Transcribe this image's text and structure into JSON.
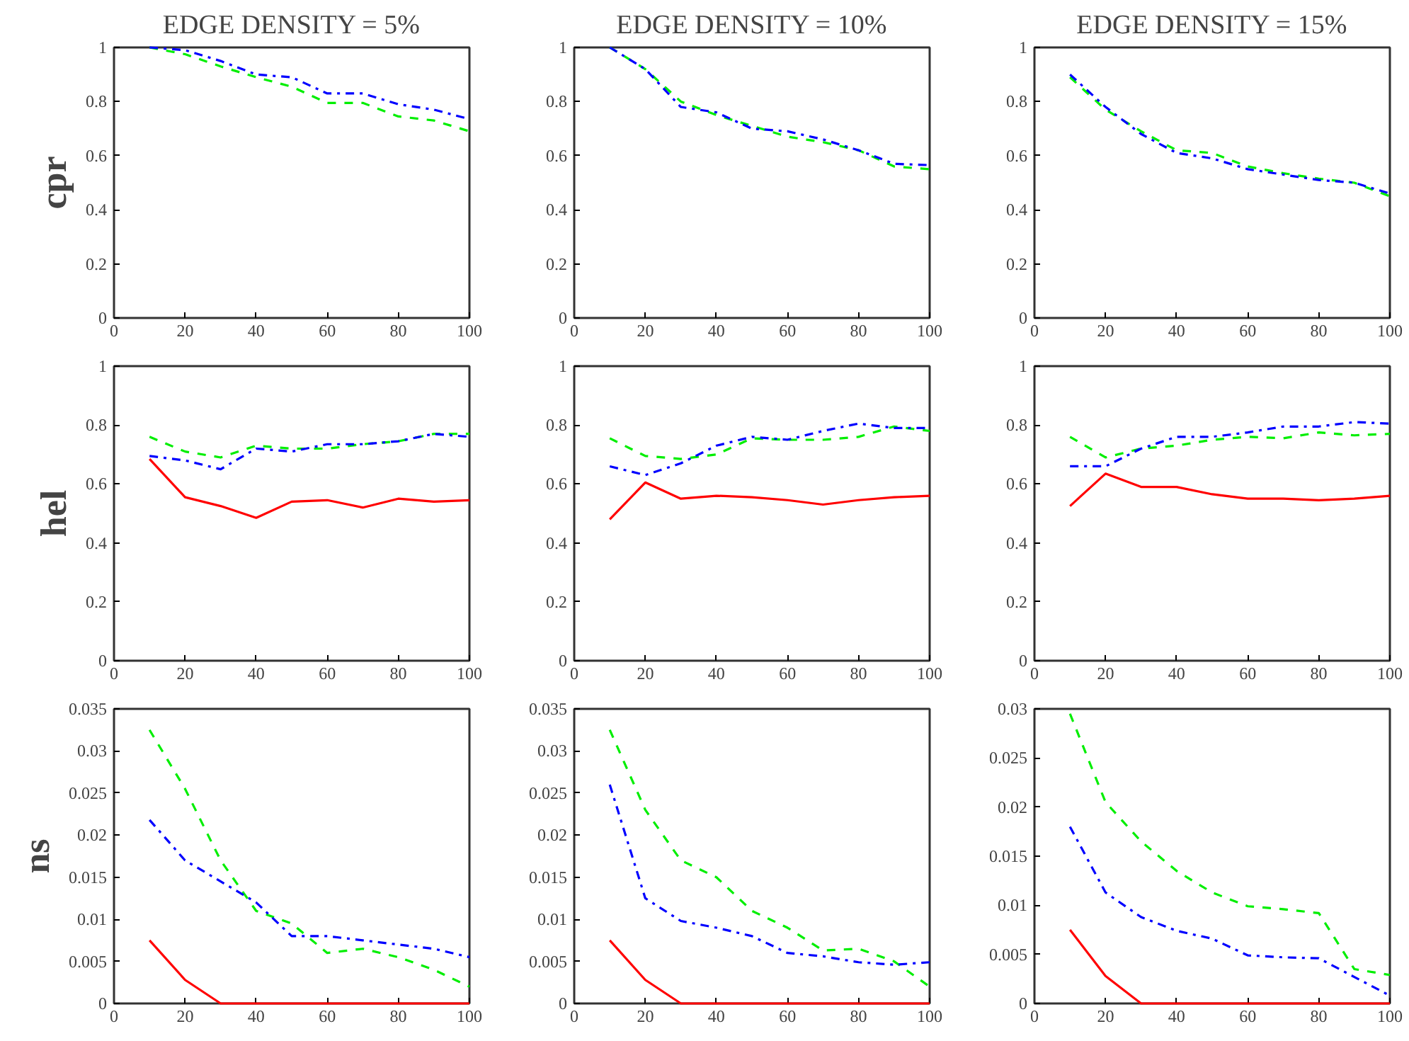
{
  "chart_data": [
    {
      "type": "line",
      "title": "EDGE DENSITY = 5%",
      "ylabel": "cpr",
      "x": [
        10,
        20,
        30,
        40,
        50,
        60,
        70,
        80,
        90,
        100
      ],
      "xlim": [
        0,
        100
      ],
      "xticks": [
        0,
        20,
        40,
        60,
        80,
        100
      ],
      "ylim": [
        0,
        1
      ],
      "yticks": [
        0,
        0.2,
        0.4,
        0.6,
        0.8,
        1
      ],
      "grid": false,
      "series": [
        {
          "color": "#00ee00",
          "line_style": "dashed",
          "values": [
            1.0,
            0.975,
            0.93,
            0.89,
            0.855,
            0.795,
            0.795,
            0.745,
            0.73,
            0.69
          ]
        },
        {
          "color": "#0000ff",
          "line_style": "dashdot",
          "values": [
            1.0,
            0.99,
            0.95,
            0.9,
            0.89,
            0.83,
            0.83,
            0.79,
            0.77,
            0.735
          ]
        }
      ]
    },
    {
      "type": "line",
      "title": "EDGE DENSITY = 10%",
      "x": [
        10,
        20,
        30,
        40,
        50,
        60,
        70,
        80,
        90,
        100
      ],
      "xlim": [
        0,
        100
      ],
      "xticks": [
        0,
        20,
        40,
        60,
        80,
        100
      ],
      "ylim": [
        0,
        1
      ],
      "yticks": [
        0,
        0.2,
        0.4,
        0.6,
        0.8,
        1
      ],
      "grid": false,
      "series": [
        {
          "color": "#00ee00",
          "line_style": "dashed",
          "values": [
            1.0,
            0.92,
            0.8,
            0.75,
            0.71,
            0.67,
            0.65,
            0.62,
            0.56,
            0.55
          ]
        },
        {
          "color": "#0000ff",
          "line_style": "dashdot",
          "values": [
            1.0,
            0.92,
            0.78,
            0.76,
            0.7,
            0.69,
            0.66,
            0.62,
            0.57,
            0.565
          ]
        }
      ]
    },
    {
      "type": "line",
      "title": "EDGE DENSITY = 15%",
      "x": [
        10,
        20,
        30,
        40,
        50,
        60,
        70,
        80,
        90,
        100
      ],
      "xlim": [
        0,
        100
      ],
      "xticks": [
        0,
        20,
        40,
        60,
        80,
        100
      ],
      "ylim": [
        0,
        1
      ],
      "yticks": [
        0,
        0.2,
        0.4,
        0.6,
        0.8,
        1
      ],
      "grid": false,
      "series": [
        {
          "color": "#00ee00",
          "line_style": "dashed",
          "values": [
            0.89,
            0.77,
            0.69,
            0.62,
            0.61,
            0.56,
            0.535,
            0.515,
            0.5,
            0.45
          ]
        },
        {
          "color": "#0000ff",
          "line_style": "dashdot",
          "values": [
            0.9,
            0.78,
            0.68,
            0.61,
            0.59,
            0.55,
            0.53,
            0.51,
            0.5,
            0.46
          ]
        }
      ]
    },
    {
      "type": "line",
      "ylabel": "hel",
      "x": [
        10,
        20,
        30,
        40,
        50,
        60,
        70,
        80,
        90,
        100
      ],
      "xlim": [
        0,
        100
      ],
      "xticks": [
        0,
        20,
        40,
        60,
        80,
        100
      ],
      "ylim": [
        0,
        1
      ],
      "yticks": [
        0,
        0.2,
        0.4,
        0.6,
        0.8,
        1
      ],
      "grid": false,
      "series": [
        {
          "color": "#ff0000",
          "line_style": "solid",
          "values": [
            0.685,
            0.555,
            0.525,
            0.485,
            0.54,
            0.545,
            0.52,
            0.55,
            0.54,
            0.545
          ]
        },
        {
          "color": "#00ee00",
          "line_style": "dashed",
          "values": [
            0.76,
            0.71,
            0.69,
            0.73,
            0.72,
            0.72,
            0.735,
            0.745,
            0.77,
            0.77
          ]
        },
        {
          "color": "#0000ff",
          "line_style": "dashdot",
          "values": [
            0.695,
            0.68,
            0.65,
            0.72,
            0.71,
            0.735,
            0.735,
            0.745,
            0.77,
            0.76
          ]
        }
      ]
    },
    {
      "type": "line",
      "x": [
        10,
        20,
        30,
        40,
        50,
        60,
        70,
        80,
        90,
        100
      ],
      "xlim": [
        0,
        100
      ],
      "xticks": [
        0,
        20,
        40,
        60,
        80,
        100
      ],
      "ylim": [
        0,
        1
      ],
      "yticks": [
        0,
        0.2,
        0.4,
        0.6,
        0.8,
        1
      ],
      "grid": false,
      "series": [
        {
          "color": "#ff0000",
          "line_style": "solid",
          "values": [
            0.48,
            0.605,
            0.55,
            0.56,
            0.555,
            0.545,
            0.53,
            0.545,
            0.555,
            0.56
          ]
        },
        {
          "color": "#00ee00",
          "line_style": "dashed",
          "values": [
            0.755,
            0.695,
            0.685,
            0.7,
            0.755,
            0.75,
            0.75,
            0.76,
            0.795,
            0.78
          ]
        },
        {
          "color": "#0000ff",
          "line_style": "dashdot",
          "values": [
            0.66,
            0.63,
            0.67,
            0.73,
            0.76,
            0.75,
            0.78,
            0.805,
            0.79,
            0.79
          ]
        }
      ]
    },
    {
      "type": "line",
      "x": [
        10,
        20,
        30,
        40,
        50,
        60,
        70,
        80,
        90,
        100
      ],
      "xlim": [
        0,
        100
      ],
      "xticks": [
        0,
        20,
        40,
        60,
        80,
        100
      ],
      "ylim": [
        0,
        1
      ],
      "yticks": [
        0,
        0.2,
        0.4,
        0.6,
        0.8,
        1
      ],
      "grid": false,
      "series": [
        {
          "color": "#ff0000",
          "line_style": "solid",
          "values": [
            0.525,
            0.635,
            0.59,
            0.59,
            0.565,
            0.55,
            0.55,
            0.545,
            0.55,
            0.56
          ]
        },
        {
          "color": "#00ee00",
          "line_style": "dashed",
          "values": [
            0.76,
            0.69,
            0.72,
            0.73,
            0.75,
            0.76,
            0.755,
            0.775,
            0.765,
            0.77
          ]
        },
        {
          "color": "#0000ff",
          "line_style": "dashdot",
          "values": [
            0.66,
            0.66,
            0.72,
            0.76,
            0.76,
            0.775,
            0.795,
            0.795,
            0.81,
            0.805
          ]
        }
      ]
    },
    {
      "type": "line",
      "ylabel": "ns",
      "x": [
        10,
        20,
        30,
        40,
        50,
        60,
        70,
        80,
        90,
        100
      ],
      "xlim": [
        0,
        100
      ],
      "xticks": [
        0,
        20,
        40,
        60,
        80,
        100
      ],
      "ylim": [
        0,
        0.035
      ],
      "yticks": [
        0,
        0.005,
        0.01,
        0.015,
        0.02,
        0.025,
        0.03,
        0.035
      ],
      "grid": false,
      "series": [
        {
          "color": "#ff0000",
          "line_style": "solid",
          "values": [
            0.0075,
            0.0028,
            0,
            0,
            0,
            0,
            0,
            0,
            0,
            0
          ]
        },
        {
          "color": "#00ee00",
          "line_style": "dashed",
          "values": [
            0.0325,
            0.0255,
            0.017,
            0.011,
            0.0095,
            0.006,
            0.0065,
            0.0055,
            0.004,
            0.002
          ]
        },
        {
          "color": "#0000ff",
          "line_style": "dashdot",
          "values": [
            0.0218,
            0.017,
            0.0145,
            0.012,
            0.008,
            0.008,
            0.0075,
            0.007,
            0.0065,
            0.0055
          ]
        }
      ]
    },
    {
      "type": "line",
      "x": [
        10,
        20,
        30,
        40,
        50,
        60,
        70,
        80,
        90,
        100
      ],
      "xlim": [
        0,
        100
      ],
      "xticks": [
        0,
        20,
        40,
        60,
        80,
        100
      ],
      "ylim": [
        0,
        0.035
      ],
      "yticks": [
        0,
        0.005,
        0.01,
        0.015,
        0.02,
        0.025,
        0.03,
        0.035
      ],
      "grid": false,
      "series": [
        {
          "color": "#ff0000",
          "line_style": "solid",
          "values": [
            0.0075,
            0.0028,
            0,
            0,
            0,
            0,
            0,
            0,
            0,
            0
          ]
        },
        {
          "color": "#00ee00",
          "line_style": "dashed",
          "values": [
            0.0325,
            0.023,
            0.017,
            0.015,
            0.011,
            0.009,
            0.0063,
            0.0065,
            0.005,
            0.002
          ]
        },
        {
          "color": "#0000ff",
          "line_style": "dashdot",
          "values": [
            0.026,
            0.0125,
            0.0098,
            0.009,
            0.008,
            0.006,
            0.0056,
            0.0049,
            0.0046,
            0.0049
          ]
        }
      ]
    },
    {
      "type": "line",
      "x": [
        10,
        20,
        30,
        40,
        50,
        60,
        70,
        80,
        90,
        100
      ],
      "xlim": [
        0,
        100
      ],
      "xticks": [
        0,
        20,
        40,
        60,
        80,
        100
      ],
      "ylim": [
        0,
        0.03
      ],
      "yticks": [
        0,
        0.005,
        0.01,
        0.015,
        0.02,
        0.025,
        0.03
      ],
      "grid": false,
      "series": [
        {
          "color": "#ff0000",
          "line_style": "solid",
          "values": [
            0.0075,
            0.0028,
            0,
            0,
            0,
            0,
            0,
            0,
            0,
            0
          ]
        },
        {
          "color": "#00ee00",
          "line_style": "dashed",
          "values": [
            0.0295,
            0.0205,
            0.0165,
            0.0135,
            0.0113,
            0.0099,
            0.0096,
            0.0092,
            0.0035,
            0.0029
          ]
        },
        {
          "color": "#0000ff",
          "line_style": "dashdot",
          "values": [
            0.018,
            0.0113,
            0.0088,
            0.0074,
            0.0066,
            0.0049,
            0.0047,
            0.0046,
            0.0027,
            0.0008
          ]
        }
      ]
    }
  ]
}
